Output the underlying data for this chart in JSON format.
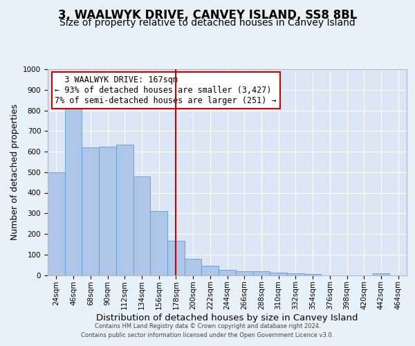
{
  "title": "3, WAALWYK DRIVE, CANVEY ISLAND, SS8 8BL",
  "subtitle": "Size of property relative to detached houses in Canvey Island",
  "xlabel": "Distribution of detached houses by size in Canvey Island",
  "ylabel": "Number of detached properties",
  "footer_line1": "Contains HM Land Registry data © Crown copyright and database right 2024.",
  "footer_line2": "Contains public sector information licensed under the Open Government Licence v3.0.",
  "bar_labels": [
    "24sqm",
    "46sqm",
    "68sqm",
    "90sqm",
    "112sqm",
    "134sqm",
    "156sqm",
    "178sqm",
    "200sqm",
    "222sqm",
    "244sqm",
    "266sqm",
    "288sqm",
    "310sqm",
    "332sqm",
    "354sqm",
    "376sqm",
    "398sqm",
    "420sqm",
    "442sqm",
    "464sqm"
  ],
  "bar_values": [
    500,
    810,
    620,
    625,
    635,
    480,
    310,
    165,
    80,
    45,
    25,
    20,
    20,
    12,
    10,
    5,
    0,
    0,
    0,
    10,
    0
  ],
  "bar_color": "#aec6e8",
  "bar_edge_color": "#5b9bd5",
  "background_color": "#e8f0f8",
  "axes_bg_color": "#dce6f5",
  "grid_color": "#ffffff",
  "vline_x": 7,
  "vline_color": "#cc0000",
  "annotation_text": "  3 WAALWYK DRIVE: 167sqm\n← 93% of detached houses are smaller (3,427)\n7% of semi-detached houses are larger (251) →",
  "annotation_box_edge": "#cc0000",
  "ylim": [
    0,
    1000
  ],
  "yticks": [
    0,
    100,
    200,
    300,
    400,
    500,
    600,
    700,
    800,
    900,
    1000
  ],
  "title_fontsize": 12,
  "subtitle_fontsize": 10,
  "xlabel_fontsize": 9.5,
  "ylabel_fontsize": 9,
  "tick_fontsize": 7.5,
  "annotation_fontsize": 8.5
}
